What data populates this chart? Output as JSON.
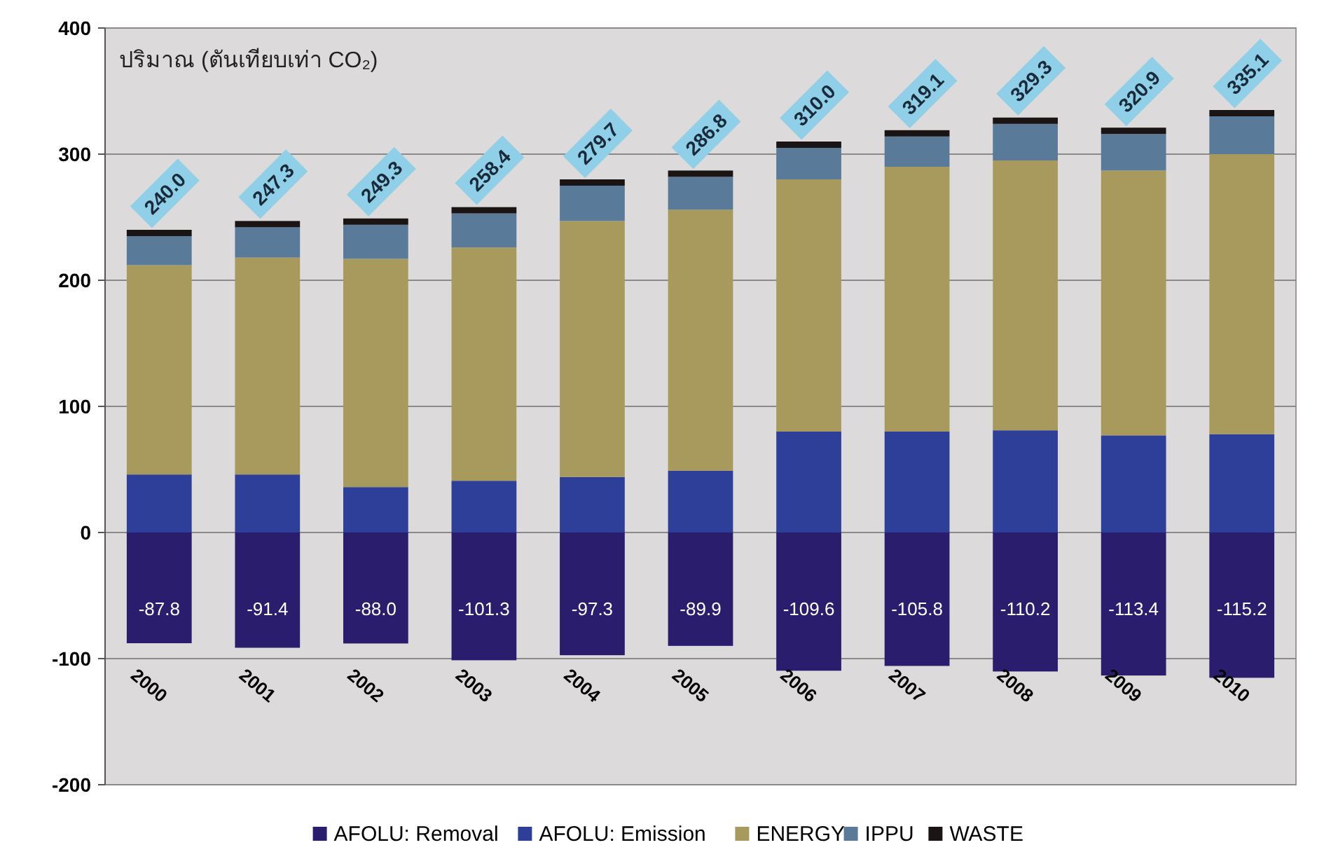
{
  "chart_data": {
    "type": "bar",
    "stacked": true,
    "ylabel": "ปริมาณ (ตันเทียบเท่า CO₂)",
    "categories": [
      "2000",
      "2001",
      "2002",
      "2003",
      "2004",
      "2005",
      "2006",
      "2007",
      "2008",
      "2009",
      "2010"
    ],
    "ylim": [
      -200,
      400
    ],
    "yticks": [
      -200,
      -100,
      0,
      100,
      200,
      300,
      400
    ],
    "grid": "y",
    "legend": "bottom",
    "series": [
      {
        "name": "AFOLU: Removal",
        "color": "#2a1d6e",
        "values": [
          -87.8,
          -91.4,
          -88.0,
          -101.3,
          -97.3,
          -89.9,
          -109.6,
          -105.8,
          -110.2,
          -113.4,
          -115.2
        ],
        "value_labels": [
          "-87.8",
          "-91.4",
          "-88.0",
          "-101.3",
          "-97.3",
          "-89.9",
          "-109.6",
          "-105.8",
          "-110.2",
          "-113.4",
          "-115.2"
        ]
      },
      {
        "name": "AFOLU: Emission",
        "color": "#2e3f9a",
        "values": [
          46,
          46,
          36,
          41,
          44,
          49,
          80,
          80,
          81,
          77,
          78
        ]
      },
      {
        "name": "ENERGY",
        "color": "#a89a5c",
        "values": [
          166,
          172,
          181,
          185,
          203,
          207,
          200,
          210,
          214,
          210,
          222
        ]
      },
      {
        "name": "IPPU",
        "color": "#5a7a9a",
        "values": [
          23,
          24,
          27,
          27,
          28,
          26,
          25,
          24,
          29,
          29,
          30
        ]
      },
      {
        "name": "WASTE",
        "color": "#1a1414",
        "values": [
          5,
          5,
          5,
          5,
          5,
          5,
          5,
          5,
          5,
          5,
          5
        ]
      }
    ],
    "annotations": [
      {
        "text": "240.0",
        "x": "2000",
        "y": 240.0
      },
      {
        "text": "247.3",
        "x": "2001",
        "y": 247.3
      },
      {
        "text": "249.3",
        "x": "2002",
        "y": 249.3
      },
      {
        "text": "258.4",
        "x": "2003",
        "y": 258.4
      },
      {
        "text": "279.7",
        "x": "2004",
        "y": 279.7
      },
      {
        "text": "286.8",
        "x": "2005",
        "y": 286.8
      },
      {
        "text": "310.0",
        "x": "2006",
        "y": 310.0
      },
      {
        "text": "319.1",
        "x": "2007",
        "y": 319.1
      },
      {
        "text": "329.3",
        "x": "2008",
        "y": 329.3
      },
      {
        "text": "320.9",
        "x": "2009",
        "y": 320.9
      },
      {
        "text": "335.1",
        "x": "2010",
        "y": 335.1
      }
    ]
  }
}
